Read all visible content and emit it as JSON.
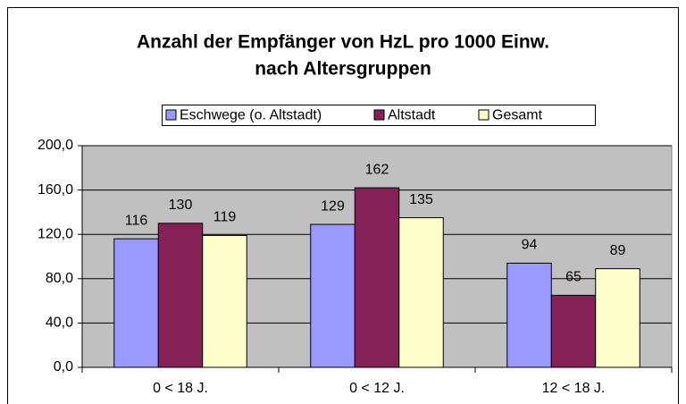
{
  "chart_data": {
    "type": "bar",
    "title": [
      "Anzahl der Empfänger von HzL pro 1000 Einw.",
      "nach Altersgruppen"
    ],
    "categories": [
      "0 < 18 J.",
      "0 < 12 J.",
      "12 < 18 J."
    ],
    "series": [
      {
        "name": "Eschwege (o. Altstadt)",
        "color": "#9999ff",
        "values": [
          116,
          129,
          94
        ]
      },
      {
        "name": "Altstadt",
        "color": "#852156",
        "values": [
          130,
          162,
          65
        ]
      },
      {
        "name": "Gesamt",
        "color": "#ffffcc",
        "values": [
          119,
          135,
          89
        ]
      }
    ],
    "ylim": [
      0,
      200
    ],
    "yticks": [
      {
        "value": 0,
        "label": "0,0"
      },
      {
        "value": 40,
        "label": "40,0"
      },
      {
        "value": 80,
        "label": "80,0"
      },
      {
        "value": 120,
        "label": "120,0"
      },
      {
        "value": 160,
        "label": "160,0"
      },
      {
        "value": 200,
        "label": "200,0"
      }
    ],
    "grid": true,
    "legend": "top"
  }
}
